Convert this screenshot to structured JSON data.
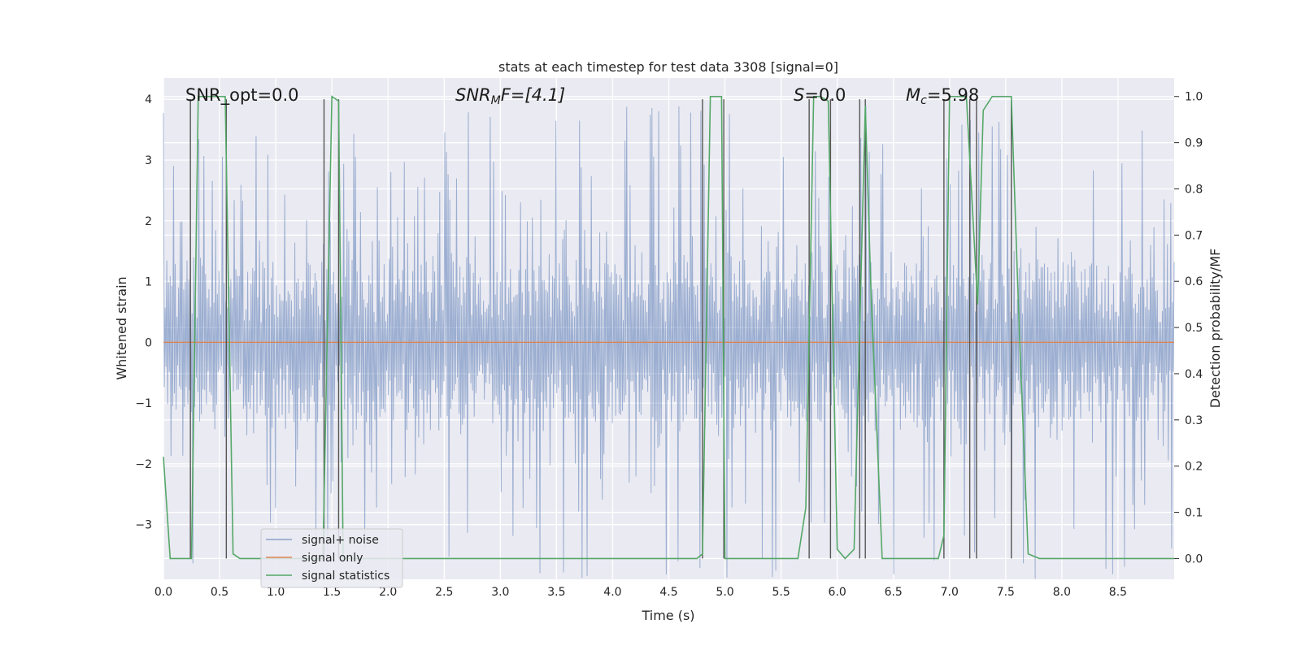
{
  "chart_data": {
    "type": "line",
    "title": "stats at each timestep for test data 3308 [signal=0]",
    "xlabel": "Time (s)",
    "ylabel_left": "Whitened strain",
    "ylabel_right": "Detection probability/MF",
    "xlim": [
      0,
      9.0
    ],
    "ylim_left": [
      -3.9,
      4.35
    ],
    "ylim_right": [
      -0.045,
      1.04
    ],
    "xticks": [
      0.0,
      0.5,
      1.0,
      1.5,
      2.0,
      2.5,
      3.0,
      3.5,
      4.0,
      4.5,
      5.0,
      5.5,
      6.0,
      6.5,
      7.0,
      7.5,
      8.0,
      8.5
    ],
    "xtick_labels": [
      "0.0",
      "0.5",
      "1.0",
      "1.5",
      "2.0",
      "2.5",
      "3.0",
      "3.5",
      "4.0",
      "4.5",
      "5.0",
      "5.5",
      "6.0",
      "6.5",
      "7.0",
      "7.5",
      "8.0",
      "8.5"
    ],
    "yticks_left": [
      -3,
      -2,
      -1,
      0,
      1,
      2,
      3,
      4
    ],
    "ytick_labels_left": [
      "−3",
      "−2",
      "−1",
      "0",
      "1",
      "2",
      "3",
      "4"
    ],
    "yticks_right": [
      0.0,
      0.1,
      0.2,
      0.3,
      0.4,
      0.5,
      0.6,
      0.7,
      0.8,
      0.9,
      1.0
    ],
    "ytick_labels_right": [
      "0.0",
      "0.1",
      "0.2",
      "0.3",
      "0.4",
      "0.5",
      "0.6",
      "0.7",
      "0.8",
      "0.9",
      "1.0"
    ],
    "grid": true,
    "legend_position": "lower-left",
    "series": [
      {
        "name": "signal+ noise",
        "color": "#4c72b0",
        "axis": "left",
        "style": "noisy strain",
        "amplitude_core": 1.3,
        "amplitude_peak": 3.9
      },
      {
        "name": "signal only",
        "color": "#dd8452",
        "axis": "left",
        "values_constant": 0
      },
      {
        "name": "signal statistics",
        "color": "#55a868",
        "axis": "right",
        "x": [
          0.0,
          0.06,
          0.25,
          0.31,
          0.55,
          0.62,
          0.68,
          0.8,
          1.0,
          1.2,
          1.42,
          1.5,
          1.56,
          1.6,
          2.0,
          3.0,
          4.0,
          4.75,
          4.8,
          4.87,
          4.97,
          5.0,
          5.1,
          5.5,
          5.65,
          5.72,
          5.79,
          5.85,
          5.92,
          6.0,
          6.07,
          6.15,
          6.25,
          6.3,
          6.4,
          6.9,
          6.95,
          7.0,
          7.15,
          7.25,
          7.3,
          7.38,
          7.55,
          7.62,
          7.7,
          7.8,
          8.0,
          8.5,
          9.0
        ],
        "values": [
          0.22,
          0.0,
          0.0,
          1.0,
          1.0,
          0.01,
          0.0,
          0.0,
          0.0,
          0.0,
          0.0,
          1.0,
          0.99,
          0.0,
          0.0,
          0.0,
          0.0,
          0.0,
          0.01,
          1.0,
          1.0,
          0.0,
          0.0,
          0.0,
          0.0,
          0.11,
          1.0,
          1.0,
          0.99,
          0.02,
          0.0,
          0.02,
          0.98,
          0.58,
          0.0,
          0.0,
          0.05,
          1.0,
          1.0,
          0.55,
          0.97,
          1.0,
          1.0,
          0.5,
          0.01,
          0.0,
          0.0,
          0.0,
          0.0
        ]
      }
    ],
    "detection_markers_x": [
      0.24,
      0.56,
      1.43,
      1.56,
      4.8,
      4.99,
      5.75,
      5.94,
      6.2,
      6.25,
      6.95,
      7.18,
      7.24,
      7.55
    ],
    "annotations": [
      "SNR_opt=0.0",
      "SNR",
      "M",
      "F=[4.1]",
      "S",
      "=0.0",
      "M",
      "c",
      "=5.98"
    ]
  }
}
